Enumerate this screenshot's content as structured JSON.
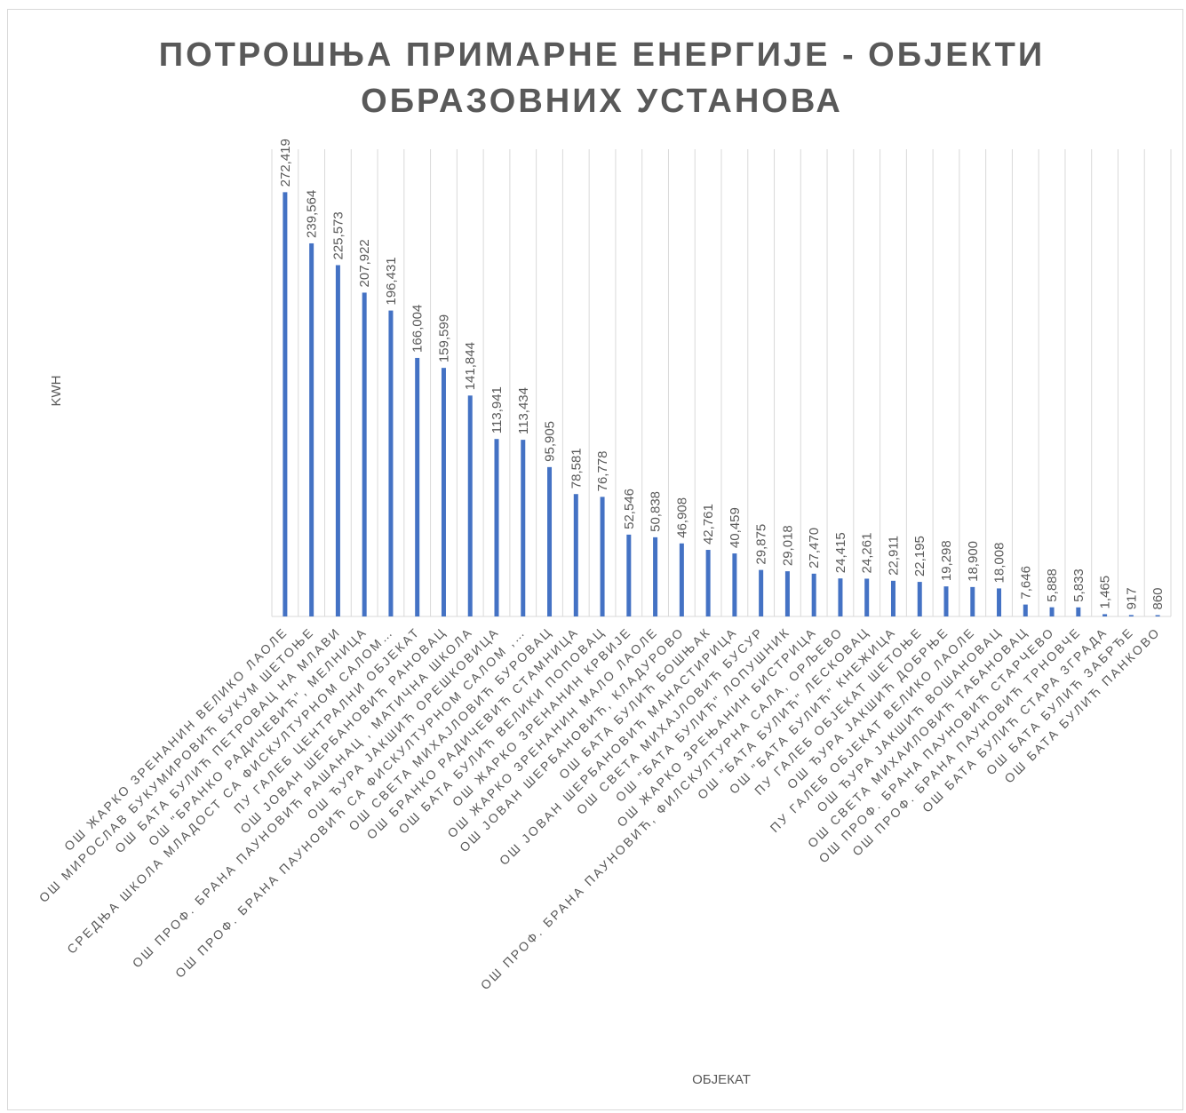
{
  "chart_data": {
    "type": "bar",
    "title": "ПОТРОШЊА ПРИМАРНЕ ЕНЕРГИЈЕ - ОБЈЕКТИ ОБРАЗОВНИХ УСТАНОВА",
    "y_label": "KWH",
    "x_label": "ОБЈЕКАТ",
    "categories": [
      "ОШ ЖАРКО ЗРЕНАНИН ВЕЛИКО ЛАОЛЕ",
      "ОШ МИРОСЛАВ БУКУМИРОВИЋ БУКУМ ШЕТОЊЕ",
      "ОШ БАТА БУЛИЋ ПЕТРОВАЦ НА МЛАВИ",
      "ОШ \"БРАНКО РАДИЧЕВИЋ\", МЕЛНИЦА",
      "СРЕДЊА ШКОЛА МЛАДОСТ СА ФИСКУЛТУРНОМ САЛОМ…",
      "ПУ ГАЛЕБ ЦЕНТРАЛНИ ОБЈЕКАТ",
      "ОШ ЈОВАН ШЕРБАНОВИЋ  РАНОВАЦ",
      "ОШ ПРОФ. БРАНА ПАУНОВИЋ РАШАНАЦ , МАТИЧНА ШКОЛА",
      "ОШ ЂУРА ЈАКШИЋ ОРЕШКОВИЦА",
      "ОШ ПРОФ. БРАНА ПАУНОВИЋ СА ФИСКУЛТУРНОМ САЛОМ ,…",
      "ОШ СВЕТА МИХАЈЛОВИЋ БУРОВАЦ",
      "ОШ БРАНКО РАДИЧЕВИЋ СТАМНИЦА",
      "ОШ БАТА БУЛИЋ ВЕЛИКИ ПОПОВАЦ",
      "ОШ ЖАРКО ЗРЕНАНИН КРВИЈЕ",
      "ОШ ЖАРКО ЗРЕНАНИН МАЛО ЛАОЛЕ",
      "ОШ ЈОВАН ШЕРБАНОВИЋ, КЛАДУРОВО",
      "ОШ БАТА БУЛИЋ БОШЊАК",
      "ОШ ЈОВАН ШЕРБАНОВИЋ МАНАСТИРИЦА",
      "ОШ СВЕТА МИХАЈЛОВИЋ БУСУР",
      "ОШ \"БАТА БУЛИЋ\" ЛОПУШНИК",
      "ОШ ЖАРКО ЗРЕЊАНИН БИСТРИЦА",
      "ОШ ПРОФ. БРАНА ПАУНОВИЋ, ФИЛСКУЛТУРНА САЛА, ОРЉЕВО",
      "ОШ \"БАТА БУЛИЋ\" ЛЕСКОВАЦ",
      "ОШ \"БАТА БУЛИЋ\" КНЕЖИЦА",
      "ПУ ГАЛЕБ ОБЈЕКАТ ШЕТОЊЕ",
      "ОШ ЂУРА ЈАКШИЋ ДОБРЊЕ",
      "ПУ ГАЛЕБ ОБЈЕКАТ ВЕЛИКО ЛАОЛЕ",
      "ОШ ЂУРА ЈАКШИЋ ВОШАНОВАЦ",
      "ОШ СВЕТА МИХАИЛОВИЋ ТАБАНОВАЦ",
      "ОШ ПРОФ. БРАНА ПАУНОВИЋ СТАРЧЕВО",
      "ОШ ПРОФ. БРАНА ПАУНОВИЋ ТРНОВЧЕ",
      "ОШ БАТА БУЛИЋ СТАРА ЗГРАДА",
      "ОШ БАТА БУЛИЋ ЗАБРЂЕ",
      "ОШ БАТА БУЛИЋ ПАНКОВО"
    ],
    "values": [
      272419,
      239564,
      225573,
      207922,
      196431,
      166004,
      159599,
      141844,
      113941,
      113434,
      95905,
      78581,
      76778,
      52546,
      50838,
      46908,
      42761,
      40459,
      29875,
      29018,
      27470,
      24415,
      24261,
      22911,
      22195,
      19298,
      18900,
      18008,
      7646,
      5888,
      5833,
      1465,
      917,
      860
    ],
    "value_labels": [
      "272,419",
      "239,564",
      "225,573",
      "207,922",
      "196,431",
      "166,004",
      "159,599",
      "141,844",
      "113,941",
      "113,434",
      "95,905",
      "78,581",
      "76,778",
      "52,546",
      "50,838",
      "46,908",
      "42,761",
      "40,459",
      "29,875",
      "29,018",
      "27,470",
      "24,415",
      "24,261",
      "22,911",
      "22,195",
      "19,298",
      "18,900",
      "18,008",
      "7,646",
      "5,888",
      "5,833",
      "1,465",
      "917",
      "860"
    ],
    "color": "#4472c4",
    "ylim": [
      0,
      300000
    ],
    "grid": true
  }
}
